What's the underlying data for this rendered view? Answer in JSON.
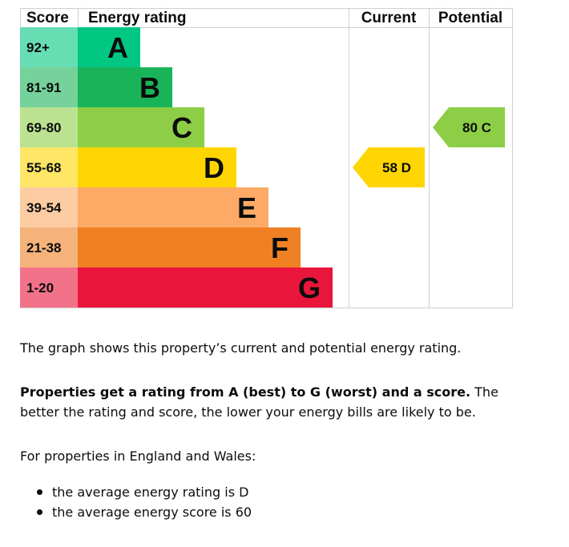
{
  "chart_data": {
    "type": "table",
    "columns": {
      "score": "Score",
      "rating": "Energy rating",
      "current": "Current",
      "potential": "Potential"
    },
    "bands": [
      {
        "score": "92+",
        "letter": "A",
        "color": "#00c781",
        "score_bg": "#66ddb3"
      },
      {
        "score": "81-91",
        "letter": "B",
        "color": "#19b459",
        "score_bg": "#75d29b"
      },
      {
        "score": "69-80",
        "letter": "C",
        "color": "#8dce46",
        "score_bg": "#bbe290"
      },
      {
        "score": "55-68",
        "letter": "D",
        "color": "#ffd500",
        "score_bg": "#ffe666"
      },
      {
        "score": "39-54",
        "letter": "E",
        "color": "#fcaa65",
        "score_bg": "#fdcca3"
      },
      {
        "score": "21-38",
        "letter": "F",
        "color": "#ef8023",
        "score_bg": "#f5b37b"
      },
      {
        "score": "1-20",
        "letter": "G",
        "color": "#e9153b",
        "score_bg": "#f27389"
      }
    ],
    "current": {
      "score": 58,
      "letter": "D",
      "label": "58  D",
      "color": "#ffd500"
    },
    "potential": {
      "score": 80,
      "letter": "C",
      "label": "80  C",
      "color": "#8dce46"
    }
  },
  "text": {
    "summary": "The graph shows this property’s current and potential energy rating.",
    "explain_bold": "Properties get a rating from A (best) to G (worst) and a score.",
    "explain_rest": " The better the rating and score, the lower your energy bills are likely to be.",
    "region": "For properties in England and Wales:",
    "averages": [
      "the average energy rating is D",
      "the average energy score is 60"
    ]
  }
}
